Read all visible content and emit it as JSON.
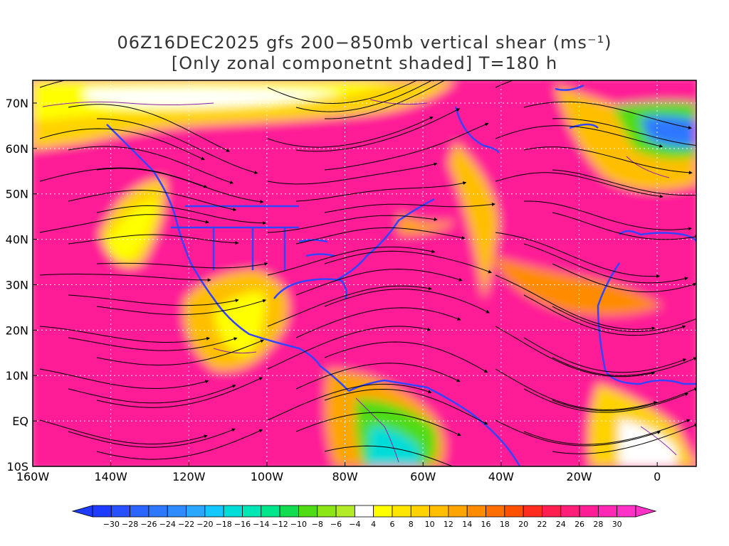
{
  "title": {
    "line1": "06Z16DEC2025 gfs 200−850mb vertical shear (ms⁻¹)",
    "line2": "[Only zonal componetnt shaded] T=180 h"
  },
  "axes": {
    "lon_min": -160,
    "lon_max": 10,
    "lat_min": -10,
    "lat_max": 75,
    "x_ticks": [
      "160W",
      "140W",
      "120W",
      "100W",
      "80W",
      "60W",
      "40W",
      "20W",
      "0"
    ],
    "x_tick_values": [
      -160,
      -140,
      -120,
      -100,
      -80,
      -60,
      -40,
      -20,
      0
    ],
    "y_ticks": [
      "10S",
      "EQ",
      "10N",
      "20N",
      "30N",
      "40N",
      "50N",
      "60N",
      "70N"
    ],
    "y_tick_values": [
      -10,
      0,
      10,
      20,
      30,
      40,
      50,
      60,
      70
    ]
  },
  "colorbar": {
    "labels": [
      "−30",
      "−28",
      "−26",
      "−24",
      "−22",
      "−20",
      "−18",
      "−16",
      "−14",
      "−12",
      "−10",
      "−8",
      "−6",
      "−4",
      "4",
      "6",
      "8",
      "10",
      "12",
      "14",
      "16",
      "18",
      "20",
      "22",
      "24",
      "26",
      "28",
      "30"
    ],
    "colors": [
      "#1e3cff",
      "#2850ff",
      "#2c64ff",
      "#2e78ff",
      "#2e8cff",
      "#2aa8ff",
      "#14c8ff",
      "#00dcd8",
      "#00e6b4",
      "#00e68c",
      "#14dc50",
      "#50dc14",
      "#8ce614",
      "#b4eb28",
      "#ffffff",
      "#ffff00",
      "#ffe600",
      "#ffd200",
      "#ffbe00",
      "#ffa500",
      "#ff8c00",
      "#ff6e00",
      "#ff5000",
      "#ff2d1e",
      "#ff1e50",
      "#ff1e78",
      "#ff1e96",
      "#ff28b4",
      "#ff32c8"
    ]
  },
  "colors": {
    "coastline": "#3344ff",
    "contour": "#8822aa",
    "grid": "#ffffff",
    "streamline": "#000000"
  }
}
